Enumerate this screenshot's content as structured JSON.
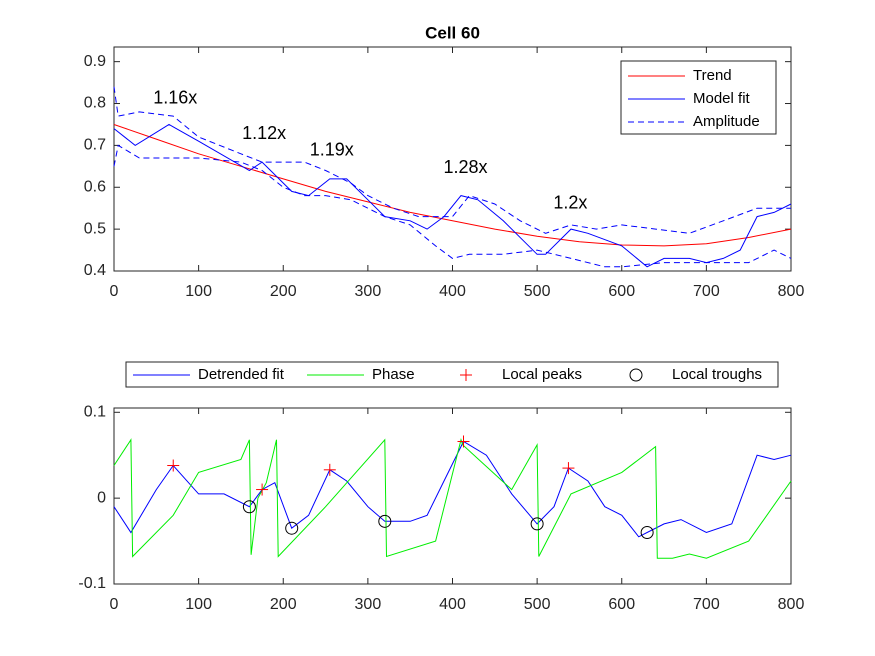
{
  "chart_data": [
    {
      "type": "line",
      "title": "Cell 60",
      "xlim": [
        0,
        800
      ],
      "xticks": [
        0,
        100,
        200,
        300,
        400,
        500,
        600,
        700,
        800
      ],
      "ylim": [
        0.4,
        0.935
      ],
      "yticks": [
        0.4,
        0.5,
        0.6,
        0.7,
        0.8,
        0.9
      ],
      "legend": "northeast",
      "annotations": [
        "1.16x",
        "1.12x",
        "1.19x",
        "1.28x",
        "1.2x"
      ],
      "series": [
        {
          "name": "Trend",
          "color": "#ff0000",
          "style": "solid",
          "x": [
            0,
            50,
            100,
            150,
            200,
            250,
            300,
            350,
            400,
            450,
            500,
            550,
            600,
            650,
            700,
            750,
            800
          ],
          "values": [
            0.75,
            0.715,
            0.68,
            0.65,
            0.62,
            0.59,
            0.565,
            0.54,
            0.52,
            0.5,
            0.483,
            0.47,
            0.462,
            0.46,
            0.465,
            0.48,
            0.5
          ]
        },
        {
          "name": "Model fit",
          "color": "#0000ff",
          "style": "solid",
          "x": [
            0,
            25,
            65,
            100,
            160,
            175,
            210,
            230,
            255,
            275,
            300,
            320,
            350,
            370,
            390,
            410,
            430,
            460,
            500,
            510,
            540,
            560,
            600,
            630,
            650,
            680,
            700,
            720,
            740,
            760,
            780,
            800
          ],
          "values": [
            0.74,
            0.7,
            0.75,
            0.71,
            0.64,
            0.66,
            0.59,
            0.58,
            0.62,
            0.62,
            0.57,
            0.53,
            0.52,
            0.5,
            0.53,
            0.58,
            0.57,
            0.52,
            0.44,
            0.44,
            0.5,
            0.49,
            0.46,
            0.41,
            0.43,
            0.43,
            0.42,
            0.43,
            0.45,
            0.53,
            0.54,
            0.56
          ]
        },
        {
          "name": "Amplitude",
          "color": "#0000ff",
          "style": "dashed",
          "x": [
            0,
            5,
            30,
            70,
            100,
            150,
            175,
            200,
            225,
            250,
            280,
            300,
            330,
            360,
            400,
            420,
            450,
            480,
            510,
            540,
            570,
            600,
            640,
            680,
            720,
            760,
            800
          ],
          "values": [
            0.84,
            0.77,
            0.78,
            0.77,
            0.72,
            0.68,
            0.66,
            0.66,
            0.66,
            0.64,
            0.61,
            0.58,
            0.55,
            0.53,
            0.53,
            0.58,
            0.56,
            0.52,
            0.49,
            0.51,
            0.5,
            0.51,
            0.5,
            0.49,
            0.52,
            0.55,
            0.55
          ]
        },
        {
          "color": "#0000ff",
          "style": "dashed",
          "x": [
            0,
            5,
            30,
            70,
            100,
            150,
            175,
            200,
            225,
            250,
            280,
            320,
            350,
            380,
            400,
            420,
            460,
            500,
            540,
            580,
            600,
            650,
            700,
            750,
            780,
            800
          ],
          "values": [
            0.65,
            0.7,
            0.67,
            0.67,
            0.67,
            0.66,
            0.64,
            0.6,
            0.58,
            0.58,
            0.57,
            0.53,
            0.51,
            0.46,
            0.43,
            0.44,
            0.44,
            0.45,
            0.43,
            0.41,
            0.41,
            0.42,
            0.42,
            0.42,
            0.45,
            0.43
          ]
        }
      ]
    },
    {
      "type": "line",
      "xlim": [
        0,
        800
      ],
      "xticks": [
        0,
        100,
        200,
        300,
        400,
        500,
        600,
        700,
        800
      ],
      "ylim": [
        -0.1,
        0.105
      ],
      "yticks": [
        -0.1,
        0,
        0.1
      ],
      "legend": "top",
      "series": [
        {
          "name": "Detrended fit",
          "color": "#0000ff",
          "style": "solid",
          "x": [
            0,
            20,
            50,
            70,
            100,
            130,
            160,
            175,
            190,
            210,
            230,
            255,
            275,
            300,
            320,
            350,
            370,
            390,
            413,
            440,
            470,
            500,
            520,
            537,
            560,
            580,
            600,
            620,
            630,
            650,
            670,
            700,
            730,
            760,
            780,
            800
          ],
          "values": [
            -0.01,
            -0.04,
            0.01,
            0.038,
            0.005,
            0.005,
            -0.01,
            0.01,
            0.018,
            -0.035,
            -0.02,
            0.033,
            0.02,
            -0.01,
            -0.027,
            -0.027,
            -0.02,
            0.02,
            0.066,
            0.05,
            0.005,
            -0.03,
            -0.01,
            0.035,
            0.02,
            -0.01,
            -0.02,
            -0.045,
            -0.04,
            -0.03,
            -0.025,
            -0.04,
            -0.03,
            0.05,
            0.045,
            0.05
          ]
        },
        {
          "name": "Phase",
          "color": "#00ee00",
          "style": "solid",
          "x": [
            0,
            20,
            22,
            70,
            100,
            150,
            160,
            162,
            170,
            180,
            192,
            194,
            250,
            320,
            322,
            380,
            410,
            412,
            470,
            500,
            502,
            540,
            600,
            640,
            642,
            660,
            680,
            700,
            750,
            800
          ],
          "values": [
            0.038,
            0.068,
            -0.068,
            -0.02,
            0.03,
            0.045,
            0.068,
            -0.066,
            0.0,
            0.018,
            0.068,
            -0.068,
            -0.01,
            0.068,
            -0.068,
            -0.05,
            0.068,
            0.062,
            0.01,
            0.062,
            -0.068,
            0.005,
            0.03,
            0.06,
            -0.07,
            -0.07,
            -0.065,
            -0.07,
            -0.05,
            0.02
          ]
        },
        {
          "name": "Local peaks",
          "color": "#ff0000",
          "marker": "plus",
          "x": [
            70,
            175,
            255,
            413,
            537
          ],
          "values": [
            0.038,
            0.01,
            0.033,
            0.066,
            0.035
          ]
        },
        {
          "name": "Local troughs",
          "color": "#000000",
          "marker": "circle",
          "x": [
            160,
            210,
            320,
            500,
            630
          ],
          "values": [
            -0.01,
            -0.035,
            -0.027,
            -0.03,
            -0.04
          ]
        }
      ]
    }
  ]
}
